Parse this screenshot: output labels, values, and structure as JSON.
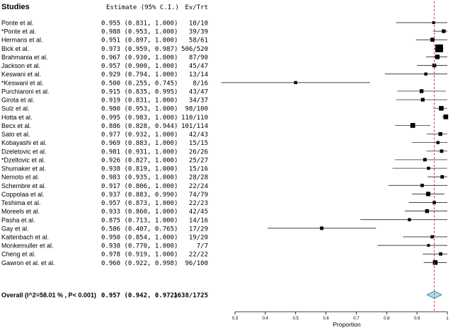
{
  "chart_data": {
    "type": "forest",
    "headers": {
      "studies": "Studies",
      "estimate": "Estimate (95% C.I.)",
      "evtrt": "Ev/Trt"
    },
    "studies": [
      {
        "name": "Ponte et al.",
        "estimate": 0.955,
        "lower": 0.831,
        "upper": 1.0,
        "ci_text": "0.955 (0.831, 1.000)",
        "evtrt": "10/10"
      },
      {
        "name": "*Ponte et al.",
        "estimate": 0.988,
        "lower": 0.953,
        "upper": 1.0,
        "ci_text": "0.988 (0.953, 1.000)",
        "evtrt": "39/39"
      },
      {
        "name": "Hermans et al.",
        "estimate": 0.951,
        "lower": 0.897,
        "upper": 1.0,
        "ci_text": "0.951 (0.897, 1.000)",
        "evtrt": "58/61"
      },
      {
        "name": "Bick et al.",
        "estimate": 0.973,
        "lower": 0.959,
        "upper": 0.987,
        "ci_text": "0.973 (0.959, 0.987)",
        "evtrt": "506/520"
      },
      {
        "name": "Brahmania et al.",
        "estimate": 0.967,
        "lower": 0.93,
        "upper": 1.0,
        "ci_text": "0.967 (0.930, 1.000)",
        "evtrt": "87/90"
      },
      {
        "name": "Jackson et al.",
        "estimate": 0.957,
        "lower": 0.9,
        "upper": 1.0,
        "ci_text": "0.957 (0.900, 1.000)",
        "evtrt": "45/47"
      },
      {
        "name": "Keswani et al.",
        "estimate": 0.929,
        "lower": 0.794,
        "upper": 1.0,
        "ci_text": "0.929 (0.794, 1.000)",
        "evtrt": "13/14"
      },
      {
        "name": "*Keswani et al.",
        "estimate": 0.5,
        "lower": 0.255,
        "upper": 0.745,
        "ci_text": "0.500 (0.255, 0.745)",
        "evtrt": "8/16"
      },
      {
        "name": "Purchiaroni et al.",
        "estimate": 0.915,
        "lower": 0.835,
        "upper": 0.995,
        "ci_text": "0.915 (0.835, 0.995)",
        "evtrt": "43/47"
      },
      {
        "name": "Girota et al.",
        "estimate": 0.919,
        "lower": 0.831,
        "upper": 1.0,
        "ci_text": "0.919 (0.831, 1.000)",
        "evtrt": "34/37"
      },
      {
        "name": "Sulz et al.",
        "estimate": 0.98,
        "lower": 0.953,
        "upper": 1.0,
        "ci_text": "0.980 (0.953, 1.000)",
        "evtrt": "98/100"
      },
      {
        "name": "Hotta et al.",
        "estimate": 0.995,
        "lower": 0.983,
        "upper": 1.0,
        "ci_text": "0.995 (0.983, 1.000)",
        "evtrt": "110/110"
      },
      {
        "name": "Becx et al.",
        "estimate": 0.886,
        "lower": 0.828,
        "upper": 0.944,
        "ci_text": "0.886 (0.828, 0.944)",
        "evtrt": "101/114"
      },
      {
        "name": "Sato et al.",
        "estimate": 0.977,
        "lower": 0.932,
        "upper": 1.0,
        "ci_text": "0.977 (0.932, 1.000)",
        "evtrt": "42/43"
      },
      {
        "name": "Kobayashi et al.",
        "estimate": 0.969,
        "lower": 0.883,
        "upper": 1.0,
        "ci_text": "0.969 (0.883, 1.000)",
        "evtrt": "15/15"
      },
      {
        "name": "Dzeletovic  et al.",
        "estimate": 0.981,
        "lower": 0.931,
        "upper": 1.0,
        "ci_text": "0.981 (0.931, 1.000)",
        "evtrt": "26/26"
      },
      {
        "name": "*Dzeltovic et al.",
        "estimate": 0.926,
        "lower": 0.827,
        "upper": 1.0,
        "ci_text": "0.926 (0.827, 1.000)",
        "evtrt": "25/27"
      },
      {
        "name": "Shumaker et al.",
        "estimate": 0.938,
        "lower": 0.819,
        "upper": 1.0,
        "ci_text": "0.938 (0.819, 1.000)",
        "evtrt": "15/16"
      },
      {
        "name": "Nemoto et al.",
        "estimate": 0.983,
        "lower": 0.935,
        "upper": 1.0,
        "ci_text": "0.983 (0.935, 1.000)",
        "evtrt": "28/28"
      },
      {
        "name": "Schembre et al.",
        "estimate": 0.917,
        "lower": 0.806,
        "upper": 1.0,
        "ci_text": "0.917 (0.806, 1.000)",
        "evtrt": "22/24"
      },
      {
        "name": "Coppolaa et al.",
        "estimate": 0.937,
        "lower": 0.883,
        "upper": 0.99,
        "ci_text": "0.937 (0.883, 0.990)",
        "evtrt": "74/79"
      },
      {
        "name": "Teshima et al.",
        "estimate": 0.957,
        "lower": 0.873,
        "upper": 1.0,
        "ci_text": "0.957 (0.873, 1.000)",
        "evtrt": "22/23"
      },
      {
        "name": "Moreels et al.",
        "estimate": 0.933,
        "lower": 0.86,
        "upper": 1.0,
        "ci_text": "0.933 (0.860, 1.000)",
        "evtrt": "42/45"
      },
      {
        "name": "Pasha et al.",
        "estimate": 0.875,
        "lower": 0.713,
        "upper": 1.0,
        "ci_text": "0.875 (0.713, 1.000)",
        "evtrt": "14/16"
      },
      {
        "name": "Gay et al.",
        "estimate": 0.586,
        "lower": 0.407,
        "upper": 0.765,
        "ci_text": "0.586 (0.407, 0.765)",
        "evtrt": "17/29"
      },
      {
        "name": "Kaltenbach et al.",
        "estimate": 0.95,
        "lower": 0.854,
        "upper": 1.0,
        "ci_text": "0.950 (0.854, 1.000)",
        "evtrt": "19/20"
      },
      {
        "name": "Monkemuller et al.",
        "estimate": 0.938,
        "lower": 0.77,
        "upper": 1.0,
        "ci_text": "0.938 (0.770, 1.000)",
        "evtrt": "7/7"
      },
      {
        "name": "Cheng et al.",
        "estimate": 0.978,
        "lower": 0.919,
        "upper": 1.0,
        "ci_text": "0.978 (0.919, 1.000)",
        "evtrt": "22/22"
      },
      {
        "name": "Gawron et al. et al.",
        "estimate": 0.96,
        "lower": 0.922,
        "upper": 0.998,
        "ci_text": "0.960 (0.922, 0.998)",
        "evtrt": "96/100"
      }
    ],
    "overall": {
      "name": "Overall (I^2=58.01 % , P< 0.001)",
      "estimate": 0.957,
      "lower": 0.942,
      "upper": 0.972,
      "ci_text": "0.957 (0.942, 0.972)",
      "evtrt": "1638/1725"
    },
    "xaxis": {
      "label": "Proportion",
      "ticks": [
        "0.3",
        "0.4",
        "0.5",
        "0.6",
        "0.7",
        "0.8",
        "0.9",
        "1"
      ],
      "range": [
        0.3,
        1.0
      ]
    },
    "reference_line": 0.957,
    "colors": {
      "reference_line": "#e8312f",
      "diamond_fill": "#a6e1f0",
      "diamond_stroke": "#2a6f8f",
      "marker": "#000000"
    }
  }
}
